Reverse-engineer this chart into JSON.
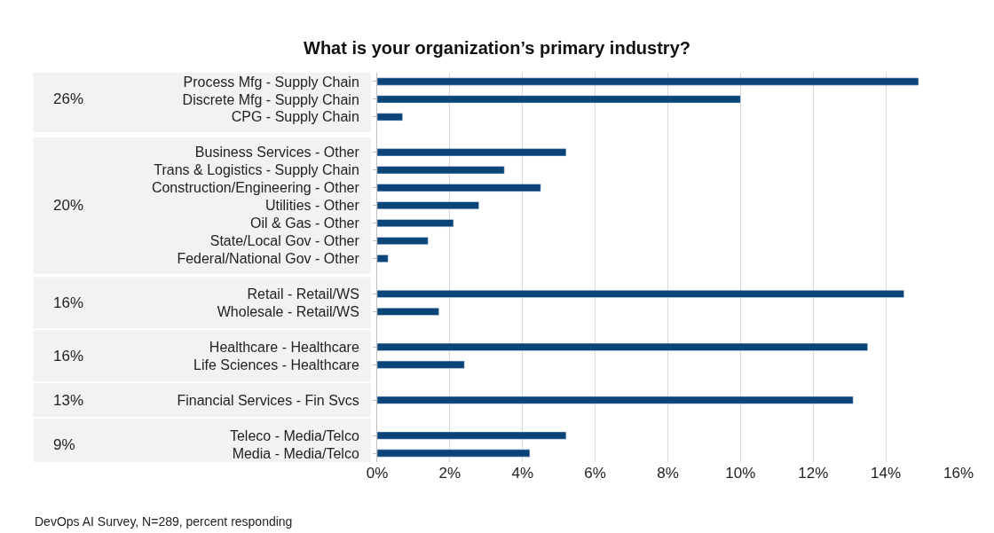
{
  "chart_data": {
    "type": "bar",
    "orientation": "horizontal",
    "title": "What is your organization’s primary industry?",
    "categories": [
      "Process Mfg - Supply Chain",
      "Discrete Mfg - Supply Chain",
      "CPG - Supply Chain",
      null,
      "Business Services - Other",
      "Trans & Logistics - Supply Chain",
      "Construction/Engineering - Other",
      "Utilities - Other",
      "Oil & Gas - Other",
      "State/Local Gov - Other",
      "Federal/National Gov - Other",
      null,
      "Retail - Retail/WS",
      "Wholesale - Retail/WS",
      null,
      "Healthcare - Healthcare",
      "Life Sciences - Healthcare",
      null,
      "Financial Services - Fin Svcs",
      null,
      "Teleco - Media/Telco",
      "Media - Media/Telco"
    ],
    "values": [
      14.9,
      10.0,
      0.7,
      null,
      5.2,
      3.5,
      4.5,
      2.8,
      2.1,
      1.4,
      0.3,
      null,
      14.5,
      1.7,
      null,
      13.5,
      2.4,
      null,
      13.1,
      null,
      5.2,
      4.2
    ],
    "color": "#0b4479",
    "xlim": [
      0,
      16
    ],
    "xticks": [
      {
        "value": 0,
        "label": "0%"
      },
      {
        "value": 2,
        "label": "2%"
      },
      {
        "value": 4,
        "label": "4%"
      },
      {
        "value": 6,
        "label": "6%"
      },
      {
        "value": 8,
        "label": "8%"
      },
      {
        "value": 10,
        "label": "10%"
      },
      {
        "value": 12,
        "label": "12%"
      },
      {
        "value": 14,
        "label": "14%"
      },
      {
        "value": 16,
        "label": "16%"
      }
    ],
    "grid": "x",
    "annotations": [
      "26%",
      "20%",
      "16%",
      "16%",
      "13%",
      "9%",
      "DevOps AI Survey, N=289, percent responding"
    ]
  }
}
